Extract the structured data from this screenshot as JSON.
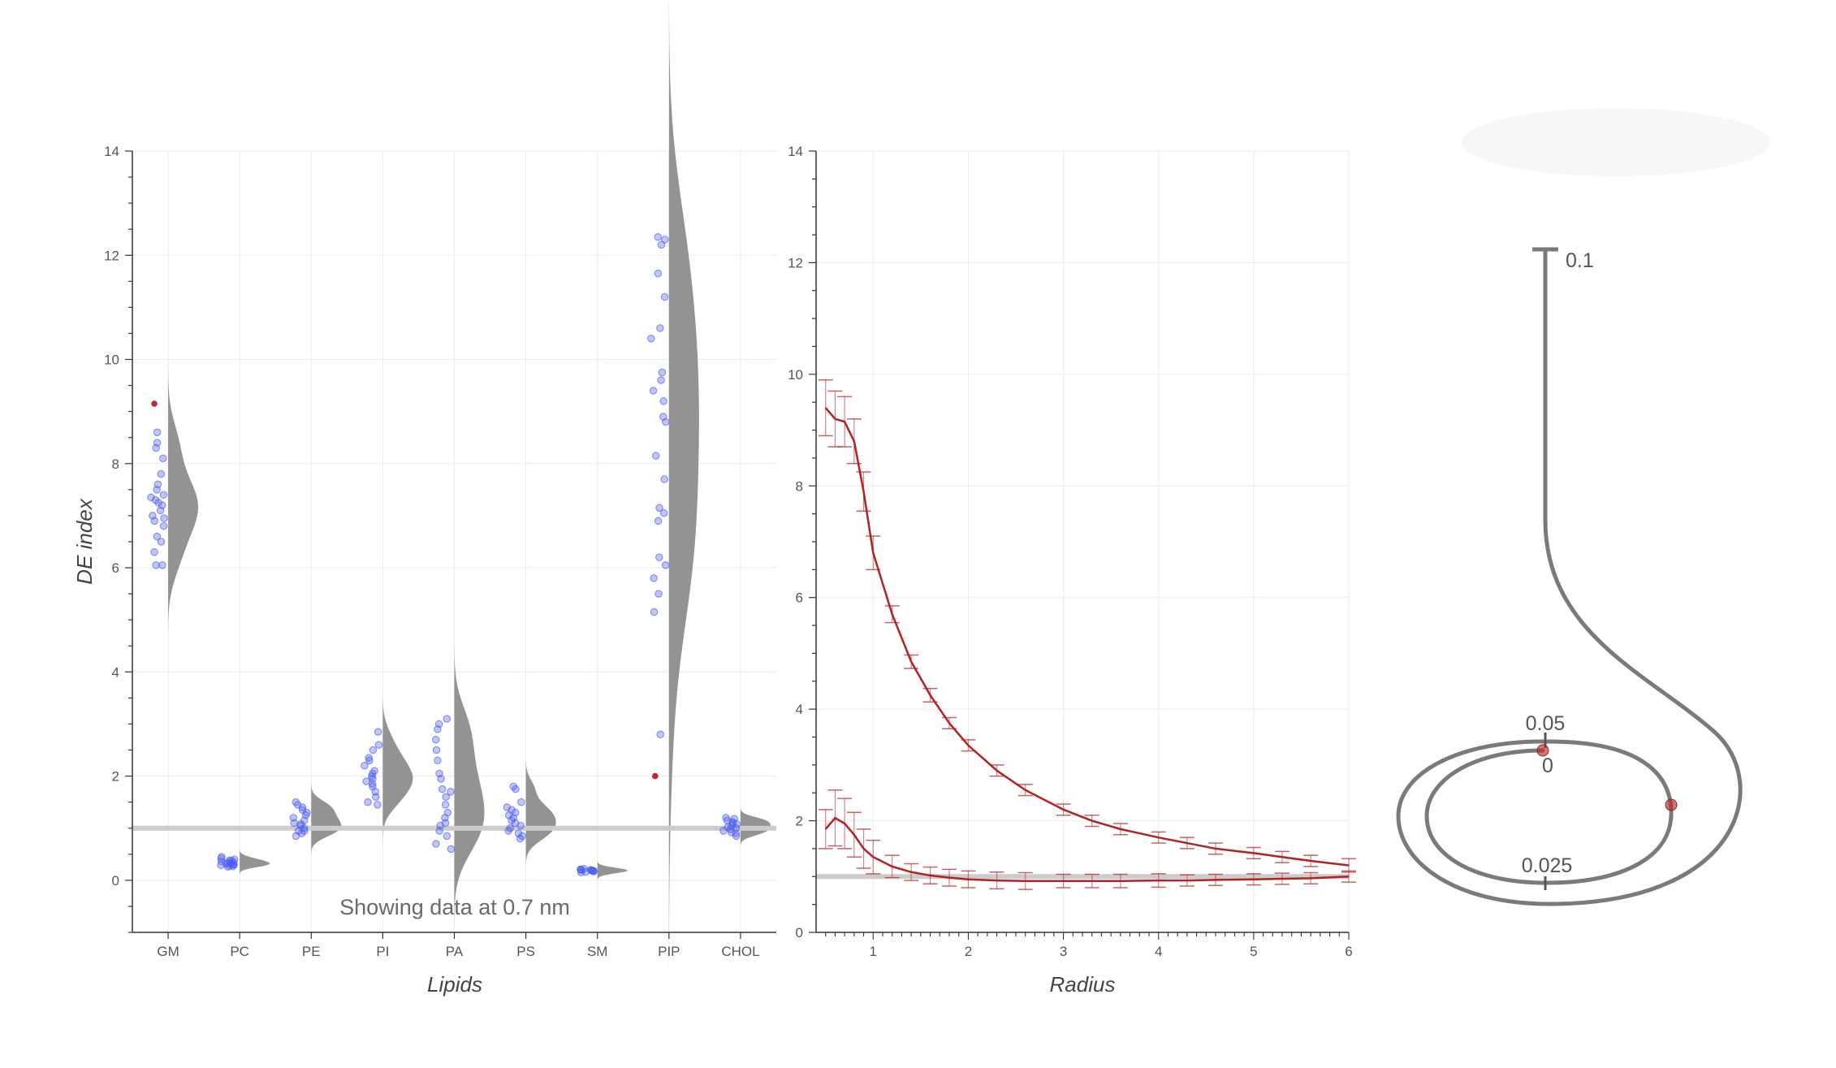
{
  "colors": {
    "point": "#4b5cf0",
    "violin": "#808080",
    "highlight": "#c0282d",
    "reference": "#cccccc",
    "curve": "#b22222",
    "spiral": "#7a7a7a"
  },
  "note": "Showing data at 0.7 nm",
  "chart_data": [
    {
      "type": "scatter",
      "subtype": "raincloud",
      "xlabel": "Lipids",
      "ylabel": "DE index",
      "ylim": [
        -1,
        14
      ],
      "yticks": [
        0,
        2,
        4,
        6,
        8,
        10,
        12,
        14
      ],
      "reference_line": 1,
      "grid": true,
      "categories": [
        "GM",
        "PC",
        "PE",
        "PI",
        "PA",
        "PS",
        "SM",
        "PIP",
        "CHOL"
      ],
      "points": [
        [
          8.4,
          8.3,
          8.1,
          7.8,
          7.6,
          7.5,
          7.4,
          7.35,
          7.3,
          7.25,
          7.1,
          7.0,
          6.9,
          6.8,
          6.6,
          6.5,
          6.3,
          6.05,
          6.05,
          8.6,
          7.2,
          6.95
        ],
        [
          0.45,
          0.42,
          0.4,
          0.38,
          0.36,
          0.35,
          0.34,
          0.33,
          0.32,
          0.31,
          0.3,
          0.29,
          0.28,
          0.27,
          0.26,
          0.38,
          0.3
        ],
        [
          1.5,
          1.4,
          1.35,
          1.3,
          1.2,
          1.15,
          1.1,
          1.05,
          1.0,
          0.95,
          0.9,
          0.85,
          1.45,
          1.25,
          0.95,
          1.08
        ],
        [
          2.85,
          2.6,
          2.5,
          2.35,
          2.3,
          2.2,
          2.1,
          2.05,
          2.0,
          1.95,
          1.9,
          1.85,
          1.8,
          1.7,
          1.6,
          1.5,
          1.45
        ],
        [
          3.1,
          3.0,
          2.9,
          2.7,
          2.5,
          2.3,
          2.05,
          1.95,
          1.75,
          1.7,
          1.6,
          1.45,
          1.3,
          1.2,
          1.05,
          0.95,
          0.85,
          0.7,
          0.6,
          1.1
        ],
        [
          1.8,
          1.75,
          1.5,
          1.4,
          1.3,
          1.25,
          1.2,
          1.1,
          1.05,
          1.0,
          0.95,
          0.9,
          0.85,
          0.8,
          1.15,
          1.35
        ],
        [
          0.22,
          0.21,
          0.2,
          0.2,
          0.19,
          0.18,
          0.18,
          0.17,
          0.16,
          0.15,
          0.2,
          0.19
        ],
        [
          12.35,
          12.3,
          12.2,
          11.65,
          11.2,
          10.6,
          9.75,
          9.6,
          9.4,
          9.2,
          8.9,
          8.8,
          8.15,
          7.7,
          7.15,
          7.05,
          6.9,
          6.2,
          6.05,
          5.8,
          5.5,
          5.15,
          2.8,
          10.4
        ],
        [
          1.2,
          1.15,
          1.1,
          1.05,
          1.0,
          0.95,
          0.9,
          0.85,
          1.18,
          1.12,
          1.08,
          1.02,
          0.98,
          0.92
        ]
      ],
      "highlighted_points": [
        {
          "category": "GM",
          "value": 9.15
        },
        {
          "category": "PIP",
          "value": 2.0
        }
      ]
    },
    {
      "type": "line",
      "xlabel": "Radius",
      "ylabel": "",
      "xlim": [
        0.4,
        6
      ],
      "ylim": [
        0,
        14
      ],
      "xticks": [
        1,
        2,
        3,
        4,
        5,
        6
      ],
      "yticks": [
        0,
        2,
        4,
        6,
        8,
        10,
        12,
        14
      ],
      "reference_line": 1,
      "grid": true,
      "series": [
        {
          "x": [
            0.5,
            0.6,
            0.7,
            0.8,
            0.9,
            1.0,
            1.2,
            1.4,
            1.6,
            1.8,
            2.0,
            2.3,
            2.6,
            3.0,
            3.3,
            3.6,
            4.0,
            4.3,
            4.6,
            5.0,
            5.3,
            5.6,
            6.0
          ],
          "y": [
            9.4,
            9.2,
            9.15,
            8.8,
            7.9,
            6.8,
            5.7,
            4.85,
            4.25,
            3.75,
            3.35,
            2.9,
            2.55,
            2.2,
            2.0,
            1.85,
            1.7,
            1.6,
            1.5,
            1.42,
            1.35,
            1.28,
            1.2
          ],
          "err": [
            0.5,
            0.5,
            0.45,
            0.4,
            0.35,
            0.3,
            0.15,
            0.12,
            0.12,
            0.1,
            0.1,
            0.1,
            0.1,
            0.1,
            0.1,
            0.1,
            0.1,
            0.1,
            0.1,
            0.1,
            0.1,
            0.1,
            0.12
          ]
        },
        {
          "x": [
            0.5,
            0.6,
            0.7,
            0.8,
            0.9,
            1.0,
            1.2,
            1.4,
            1.6,
            1.8,
            2.0,
            2.3,
            2.6,
            3.0,
            3.3,
            3.6,
            4.0,
            4.3,
            4.6,
            5.0,
            5.3,
            5.6,
            6.0
          ],
          "y": [
            1.85,
            2.05,
            1.95,
            1.75,
            1.5,
            1.35,
            1.18,
            1.08,
            1.02,
            0.98,
            0.95,
            0.93,
            0.92,
            0.92,
            0.92,
            0.92,
            0.93,
            0.93,
            0.94,
            0.95,
            0.96,
            0.97,
            1.0
          ],
          "err": [
            0.35,
            0.5,
            0.45,
            0.4,
            0.35,
            0.3,
            0.2,
            0.15,
            0.15,
            0.15,
            0.15,
            0.15,
            0.15,
            0.12,
            0.12,
            0.12,
            0.12,
            0.1,
            0.1,
            0.1,
            0.1,
            0.1,
            0.1
          ]
        }
      ]
    }
  ],
  "spiral": {
    "labels": [
      "0.1",
      "0.05",
      "0",
      "0.025"
    ]
  }
}
